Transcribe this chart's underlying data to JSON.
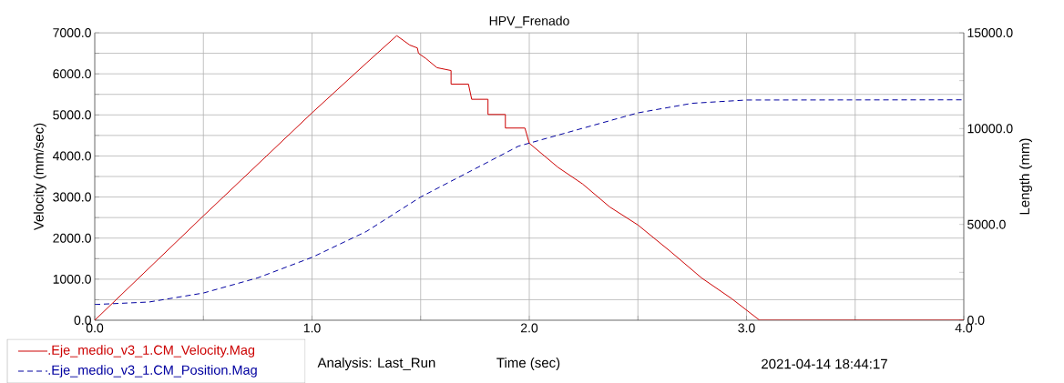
{
  "chart_data": {
    "type": "line",
    "title": "HPV_Frenado",
    "xlabel": "Time (sec)",
    "ylabel": "Velocity (mm/sec)",
    "y2label": "Length (mm)",
    "annotations": [
      "Analysis:  Last_Run",
      "2021-04-14 18:44:17"
    ],
    "xlim": [
      0,
      4
    ],
    "xticks": [
      {
        "value": 0,
        "label": "0.0"
      },
      {
        "value": 0.5,
        "label": null
      },
      {
        "value": 1,
        "label": "1.0"
      },
      {
        "value": 1.5,
        "label": null
      },
      {
        "value": 2,
        "label": "2.0"
      },
      {
        "value": 2.5,
        "label": null
      },
      {
        "value": 3,
        "label": "3.0"
      },
      {
        "value": 3.5,
        "label": null
      },
      {
        "value": 4,
        "label": "4.0"
      }
    ],
    "ylim": [
      0,
      7000
    ],
    "yticks": [
      {
        "value": 0,
        "label": "0.0"
      },
      {
        "value": 500,
        "label": null
      },
      {
        "value": 1000,
        "label": "1000.0"
      },
      {
        "value": 1500,
        "label": null
      },
      {
        "value": 2000,
        "label": "2000.0"
      },
      {
        "value": 2500,
        "label": null
      },
      {
        "value": 3000,
        "label": "3000.0"
      },
      {
        "value": 3500,
        "label": null
      },
      {
        "value": 4000,
        "label": "4000.0"
      },
      {
        "value": 4500,
        "label": null
      },
      {
        "value": 5000,
        "label": "5000.0"
      },
      {
        "value": 5500,
        "label": null
      },
      {
        "value": 6000,
        "label": "6000.0"
      },
      {
        "value": 6500,
        "label": null
      },
      {
        "value": 7000,
        "label": "7000.0"
      }
    ],
    "y2lim": [
      0,
      15000
    ],
    "y2ticks": [
      {
        "value": 0,
        "label": "0.0"
      },
      {
        "value": 2500,
        "label": null
      },
      {
        "value": 5000,
        "label": "5000.0"
      },
      {
        "value": 7500,
        "label": null
      },
      {
        "value": 10000,
        "label": "10000.0"
      },
      {
        "value": 12500,
        "label": null
      },
      {
        "value": 15000,
        "label": "15000.0"
      }
    ],
    "grid": true,
    "legend": "bottom left",
    "series": [
      {
        "name": ".Eje_medio_v3_1.CM_Velocity.Mag",
        "color": "#cc0000",
        "line_style": "solid",
        "x": [
          0,
          0.5,
          1.0,
          1.25,
          1.39,
          1.45,
          1.485,
          1.49,
          1.525,
          1.575,
          1.64,
          1.64,
          1.72,
          1.735,
          1.81,
          1.81,
          1.89,
          1.89,
          1.98,
          2.0,
          2.133,
          2.245,
          2.37,
          2.5,
          2.653,
          2.793,
          2.933,
          3.06,
          4.0
        ],
        "values": [
          0,
          2540,
          5050,
          6260,
          6930,
          6700,
          6630,
          6500,
          6370,
          6150,
          6080,
          5750,
          5750,
          5380,
          5380,
          5010,
          5010,
          4680,
          4680,
          4310,
          3720,
          3320,
          2760,
          2320,
          1660,
          1030,
          520,
          0,
          0
        ]
      },
      {
        "name": ".Eje_medio_v3_1.CM_Position.Mag",
        "color": "#0000a0",
        "line_style": "dashed",
        "axis": "y2",
        "x": [
          0,
          0.25,
          0.5,
          0.75,
          1.0,
          1.25,
          1.5,
          1.75,
          1.95,
          2.0,
          2.25,
          2.5,
          2.75,
          3.0,
          4.0
        ],
        "values": [
          820,
          950,
          1420,
          2210,
          3280,
          4630,
          6430,
          7900,
          9080,
          9240,
          10030,
          10820,
          11320,
          11490,
          11500
        ]
      }
    ]
  }
}
